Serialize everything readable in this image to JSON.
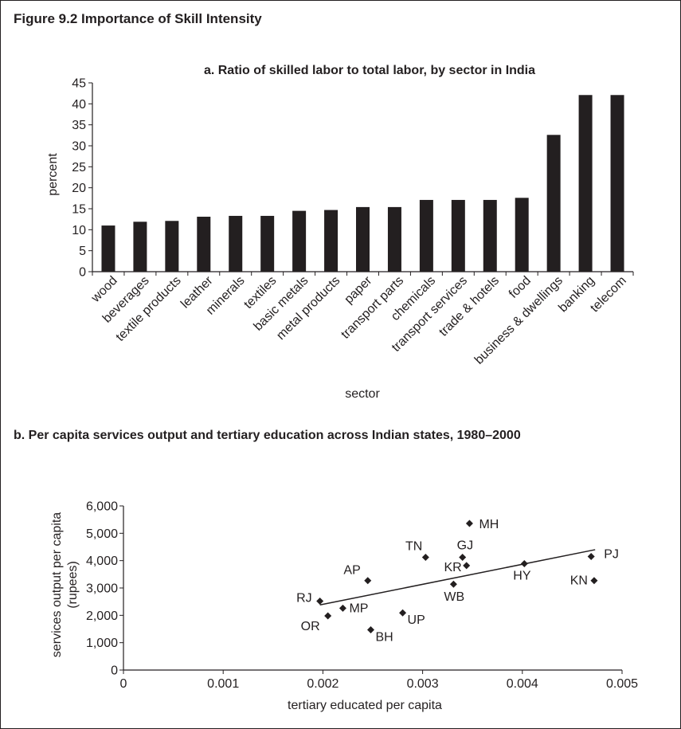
{
  "figure_title": "Figure 9.2  Importance of Skill Intensity",
  "chart_data": [
    {
      "type": "bar",
      "title": "a. Ratio of skilled labor to total labor, by sector in India",
      "xlabel": "sector",
      "ylabel": "percent",
      "ylim": [
        0,
        45
      ],
      "yticks": [
        "0",
        "5",
        "10",
        "15",
        "20",
        "25",
        "30",
        "35",
        "40",
        "45"
      ],
      "categories": [
        "wood",
        "beverages",
        "textile products",
        "leather",
        "minerals",
        "textiles",
        "basic metals",
        "metal products",
        "paper",
        "transport parts",
        "chemicals",
        "transport services",
        "trade & hotels",
        "food",
        "business & dwellings",
        "banking",
        "telecom"
      ],
      "values": [
        11,
        11.9,
        12.1,
        13.1,
        13.3,
        13.3,
        14.5,
        14.7,
        15.4,
        15.4,
        17.1,
        17.1,
        17.1,
        17.6,
        32.6,
        42.1,
        42.1
      ],
      "grid": false,
      "bar_color": "#231f20"
    },
    {
      "type": "scatter",
      "title": "b. Per capita services output and tertiary education across Indian states, 1980–2000",
      "xlabel": "tertiary educated per capita",
      "ylabel": "services output per capita",
      "ylabel2": "(rupees)",
      "xlim": [
        0,
        0.005
      ],
      "ylim": [
        0,
        6000
      ],
      "xticks": [
        "0",
        "0.001",
        "0.002",
        "0.003",
        "0.004",
        "0.005"
      ],
      "yticks": [
        "0",
        "1,000",
        "2,000",
        "3,000",
        "4,000",
        "5,000",
        "6,000"
      ],
      "points": [
        {
          "label": "RJ",
          "x": 0.00197,
          "y": 2520
        },
        {
          "label": "OR",
          "x": 0.00205,
          "y": 1980
        },
        {
          "label": "MP",
          "x": 0.0022,
          "y": 2260
        },
        {
          "label": "AP",
          "x": 0.00245,
          "y": 3270
        },
        {
          "label": "BH",
          "x": 0.00248,
          "y": 1470
        },
        {
          "label": "UP",
          "x": 0.0028,
          "y": 2090
        },
        {
          "label": "TN",
          "x": 0.00303,
          "y": 4120
        },
        {
          "label": "WB",
          "x": 0.00331,
          "y": 3140
        },
        {
          "label": "GJ",
          "x": 0.0034,
          "y": 4120
        },
        {
          "label": "KR",
          "x": 0.00344,
          "y": 3820
        },
        {
          "label": "MH",
          "x": 0.00347,
          "y": 5360
        },
        {
          "label": "HY",
          "x": 0.00402,
          "y": 3890
        },
        {
          "label": "PJ",
          "x": 0.00469,
          "y": 4150
        },
        {
          "label": "KN",
          "x": 0.00472,
          "y": 3270
        }
      ],
      "trendline": {
        "x": [
          0.00197,
          0.00473
        ],
        "y": [
          2380,
          4400
        ]
      },
      "grid": false
    }
  ]
}
